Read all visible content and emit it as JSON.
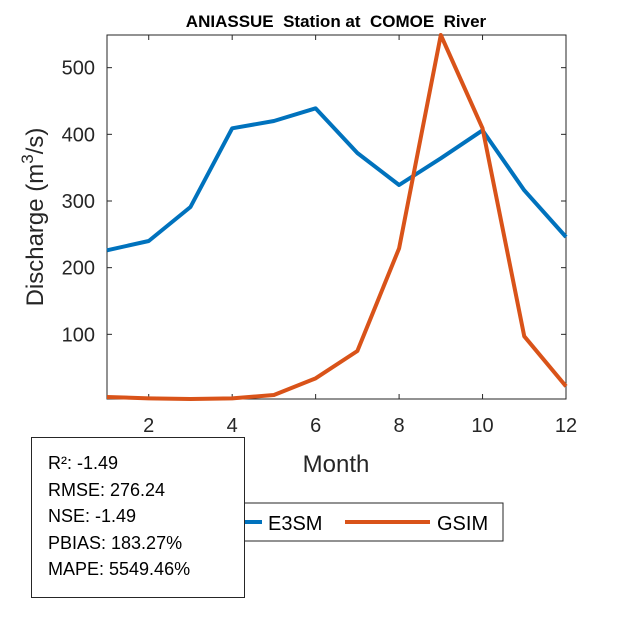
{
  "chart_data": {
    "type": "line",
    "title": "ANIASSUE  Station at  COMOE  River",
    "xlabel": "Month",
    "ylabel": "Discharge (m³/s)",
    "ylabel_parts": {
      "pre": "Discharge (m",
      "sup": "3",
      "post": "/s)"
    },
    "x": [
      1,
      2,
      3,
      4,
      5,
      6,
      7,
      8,
      9,
      10,
      11,
      12
    ],
    "xlim": [
      1,
      12
    ],
    "ylim": [
      3,
      549
    ],
    "xticks": [
      2,
      4,
      6,
      8,
      10,
      12
    ],
    "yticks": [
      100,
      200,
      300,
      400,
      500
    ],
    "grid": false,
    "legend_placement": "bottom-center",
    "series": [
      {
        "name": "E3SM",
        "color": "#0072BD",
        "values": [
          226,
          240,
          291,
          409,
          420,
          439,
          372,
          324,
          364,
          406,
          316,
          246
        ]
      },
      {
        "name": "GSIM",
        "color": "#D95319",
        "values": [
          6,
          4,
          3,
          4,
          9,
          34,
          75,
          229,
          549,
          409,
          97,
          22
        ]
      }
    ]
  },
  "stats": [
    "R²: -1.49",
    "RMSE: 276.24",
    "NSE: -1.49",
    "PBIAS: 183.27%",
    "MAPE: 5549.46%"
  ]
}
